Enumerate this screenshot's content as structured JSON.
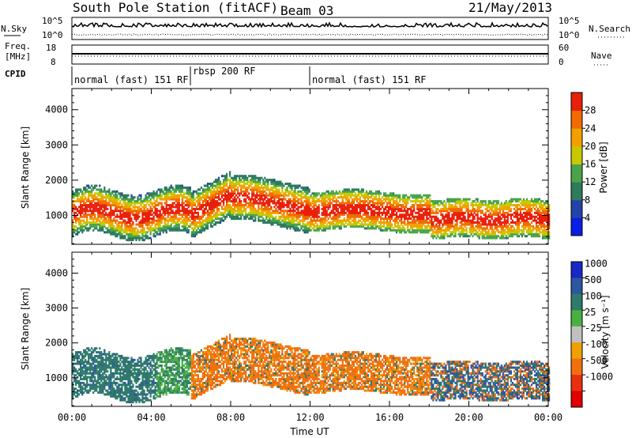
{
  "header": {
    "station": "South Pole Station (fitACF)",
    "beam": "Beam 03",
    "date": "21/May/2013"
  },
  "aux_panel": {
    "left_top_label": "N.Sky",
    "left_bottom_label_line1": "Freq.",
    "left_bottom_label_line2": "[MHz]",
    "cpid_label": "CPID",
    "right_top_label": "N.Search",
    "right_bottom_label": "Nave",
    "noise_ticks_left": [
      "10^5",
      "10^0"
    ],
    "noise_ticks_right": [
      "10^5",
      "10^0"
    ],
    "freq_ticks": [
      "18",
      "8"
    ],
    "nave_ticks": [
      "60",
      "0"
    ]
  },
  "cpid_segments": [
    {
      "label": "normal (fast) 151 RF",
      "start": 0,
      "end": 6
    },
    {
      "label": "rbsp 200 RF",
      "start": 6,
      "end": 12
    },
    {
      "label": "normal (fast) 151 RF",
      "start": 12,
      "end": 24
    }
  ],
  "chart_data": [
    {
      "type": "heatmap",
      "title": "Power",
      "xlabel": "Time UT",
      "ylabel": "Slant Range [km]",
      "xlim": [
        0,
        24
      ],
      "ylim": [
        180,
        4600
      ],
      "x_ticks": [
        "00:00",
        "04:00",
        "08:00",
        "12:00",
        "16:00",
        "20:00",
        "00:00"
      ],
      "y_ticks": [
        1000,
        2000,
        3000,
        4000
      ],
      "colorbar": {
        "label": "Power [dB]",
        "ticks": [
          4,
          8,
          12,
          16,
          20,
          24,
          28
        ],
        "colors": [
          "#0a1ee6",
          "#2343a8",
          "#2d7a5c",
          "#4aa34a",
          "#c8c800",
          "#f2a000",
          "#f06a00",
          "#e8200a"
        ]
      }
    },
    {
      "type": "heatmap",
      "title": "Velocity",
      "xlabel": "Time UT",
      "ylabel": "Slant Range [km]",
      "xlim": [
        0,
        24
      ],
      "ylim": [
        180,
        4600
      ],
      "x_ticks": [
        "00:00",
        "04:00",
        "08:00",
        "12:00",
        "16:00",
        "20:00",
        "00:00"
      ],
      "y_ticks": [
        1000,
        2000,
        3000,
        4000
      ],
      "colorbar": {
        "label": "Velocity [m s⁻¹]",
        "ticks": [
          "1000",
          "500",
          "100",
          "25",
          "-25",
          "-100",
          "-500",
          "-1000"
        ],
        "colors": [
          "#1a28c8",
          "#2d55a0",
          "#2f7a6a",
          "#48b040",
          "#c0c0c0",
          "#f0a000",
          "#f07010",
          "#e83010",
          "#e00000"
        ]
      }
    }
  ]
}
